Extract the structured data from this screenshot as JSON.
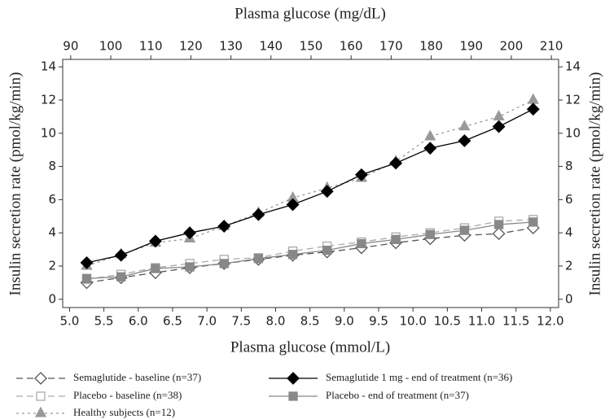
{
  "chart_data": {
    "type": "line",
    "x_label": "Plasma glucose (mmol/L)",
    "x2_label": "Plasma glucose (mg/dL)",
    "y_label": "Insulin secretion rate (pmol/kg/min)",
    "x": [
      5.25,
      5.75,
      6.25,
      6.75,
      7.25,
      7.75,
      8.25,
      8.75,
      9.25,
      9.75,
      10.25,
      10.75,
      11.25,
      11.75
    ],
    "xlim": [
      4.9,
      12.12
    ],
    "xticks": [
      {
        "value": 5,
        "label": "5.0"
      },
      5.5,
      {
        "value": 6,
        "label": "6.0"
      },
      6.5,
      {
        "value": 7,
        "label": "7.0"
      },
      7.5,
      {
        "value": 8,
        "label": "8.0"
      },
      8.5,
      {
        "value": 9,
        "label": "9.0"
      },
      9.5,
      {
        "value": 10,
        "label": "10.0"
      },
      10.5,
      {
        "value": 11,
        "label": "11.0"
      },
      11.5,
      {
        "value": 12,
        "label": "12.0"
      }
    ],
    "x2lim": [
      88,
      211.8
    ],
    "x2ticks": [
      90,
      100,
      110,
      120,
      130,
      140,
      150,
      160,
      170,
      180,
      190,
      200,
      210
    ],
    "ylim": [
      -0.5,
      14.45
    ],
    "yticks": [
      0,
      2,
      4,
      6,
      8,
      10,
      12,
      14
    ],
    "series": [
      {
        "name": "Semaglutide - baseline (n=37)",
        "color": "#555555",
        "dash": "dashed",
        "marker": "diamond-open",
        "values": [
          1.0,
          1.3,
          1.6,
          1.9,
          2.15,
          2.4,
          2.65,
          2.85,
          3.1,
          3.4,
          3.65,
          3.85,
          3.95,
          4.3
        ]
      },
      {
        "name": "Placebo - baseline (n=38)",
        "color": "#aaaaaa",
        "dash": "dashed",
        "marker": "square-open",
        "values": [
          1.2,
          1.5,
          1.9,
          2.15,
          2.4,
          2.5,
          2.9,
          3.2,
          3.45,
          3.75,
          4.0,
          4.3,
          4.7,
          4.8
        ]
      },
      {
        "name": "Healthy subjects (n=12)",
        "color": "#999999",
        "dash": "dotted",
        "marker": "triangle",
        "values": [
          2.0,
          2.7,
          3.4,
          3.65,
          4.4,
          5.2,
          6.1,
          6.7,
          7.3,
          8.3,
          9.8,
          10.4,
          11.0,
          12.0
        ]
      },
      {
        "name": "Semaglutide 1 mg - end of treatment (n=36)",
        "color": "#000000",
        "dash": "solid",
        "marker": "diamond",
        "values": [
          2.2,
          2.65,
          3.5,
          4.0,
          4.4,
          5.1,
          5.7,
          6.5,
          7.5,
          8.2,
          9.1,
          9.55,
          10.4,
          11.45
        ]
      },
      {
        "name": "Placebo - end of treatment (n=37)",
        "color": "#888888",
        "dash": "solid",
        "marker": "square",
        "values": [
          1.25,
          1.35,
          1.85,
          1.95,
          2.15,
          2.45,
          2.7,
          2.95,
          3.35,
          3.6,
          3.9,
          4.15,
          4.5,
          4.65
        ]
      }
    ]
  }
}
